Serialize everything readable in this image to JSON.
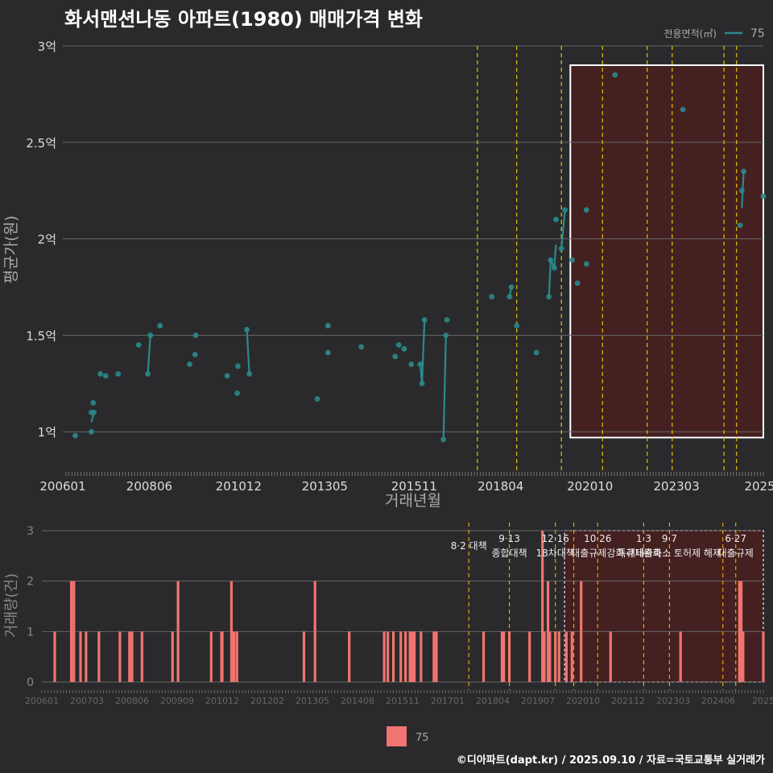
{
  "title": "화서맨션나동 아파트(1980) 매매가격 변화",
  "footer": "©디아파트(dapt.kr) / 2025.09.10 / 자료=국토교통부 실거래가",
  "colors": {
    "background": "#2a2a2c",
    "line": "#2a8a8a",
    "bar": "#f07470",
    "policy_line": "#e6c200",
    "highlight_fill": "#4a1e20",
    "highlight_border": "#ffffff",
    "grid": "#666666"
  },
  "chart_data": [
    {
      "type": "scatter",
      "title": "화서맨션나동 아파트(1980) 매매가격 변화",
      "xlabel": "거래년월",
      "ylabel": "평균가(원)",
      "ylim": [
        0.85,
        3.0
      ],
      "xlim": [
        2006.0,
        2025.6
      ],
      "y_ticks": [
        1,
        1.5,
        2,
        2.5,
        3
      ],
      "y_tick_labels": [
        "1억",
        "1.5억",
        "2억",
        "2.5억",
        "3억"
      ],
      "x_ticks": [
        2006.0,
        2008.42,
        2010.92,
        2013.33,
        2015.83,
        2018.25,
        2020.75,
        2023.17,
        2025.5
      ],
      "x_tick_labels": [
        "200601",
        "200806",
        "201012",
        "201305",
        "201511",
        "201804",
        "202010",
        "202303",
        "2025"
      ],
      "legend_title": "전용면적(㎡)",
      "legend_label": "75",
      "series": [
        {
          "name": "75",
          "points": [
            [
              2006.35,
              0.98
            ],
            [
              2006.8,
              1.0
            ],
            [
              2006.8,
              1.1
            ],
            [
              2006.85,
              1.15
            ],
            [
              2006.87,
              1.1
            ],
            [
              2007.05,
              1.3
            ],
            [
              2007.2,
              1.29
            ],
            [
              2007.55,
              1.3
            ],
            [
              2008.12,
              1.45
            ],
            [
              2008.38,
              1.3
            ],
            [
              2008.45,
              1.5
            ],
            [
              2008.72,
              1.55
            ],
            [
              2009.55,
              1.35
            ],
            [
              2009.7,
              1.4
            ],
            [
              2009.72,
              1.5
            ],
            [
              2010.6,
              1.29
            ],
            [
              2010.88,
              1.2
            ],
            [
              2010.9,
              1.34
            ],
            [
              2011.15,
              1.53
            ],
            [
              2011.22,
              1.3
            ],
            [
              2013.12,
              1.17
            ],
            [
              2013.42,
              1.55
            ],
            [
              2013.42,
              1.41
            ],
            [
              2014.35,
              1.44
            ],
            [
              2015.3,
              1.39
            ],
            [
              2015.4,
              1.45
            ],
            [
              2015.55,
              1.43
            ],
            [
              2015.75,
              1.35
            ],
            [
              2016.0,
              1.35
            ],
            [
              2016.05,
              1.25
            ],
            [
              2016.12,
              1.58
            ],
            [
              2016.65,
              0.96
            ],
            [
              2016.72,
              1.5
            ],
            [
              2016.75,
              1.58
            ],
            [
              2018.0,
              1.7
            ],
            [
              2018.5,
              1.7
            ],
            [
              2018.55,
              1.75
            ],
            [
              2018.7,
              1.55
            ],
            [
              2019.25,
              1.41
            ],
            [
              2019.6,
              1.7
            ],
            [
              2019.65,
              1.89
            ],
            [
              2019.75,
              1.85
            ],
            [
              2019.8,
              2.1
            ],
            [
              2019.95,
              1.95
            ],
            [
              2020.05,
              2.15
            ],
            [
              2020.25,
              1.89
            ],
            [
              2020.4,
              1.77
            ],
            [
              2020.65,
              1.87
            ],
            [
              2020.65,
              2.15
            ],
            [
              2021.45,
              2.85
            ],
            [
              2023.35,
              2.67
            ],
            [
              2024.95,
              2.07
            ],
            [
              2025.0,
              2.25
            ],
            [
              2025.05,
              2.35
            ],
            [
              2025.6,
              2.22
            ]
          ],
          "segments": [
            [
              [
                2006.8,
                1.05
              ],
              [
                2006.87,
                1.1
              ]
            ],
            [
              [
                2008.38,
                1.3
              ],
              [
                2008.45,
                1.5
              ]
            ],
            [
              [
                2011.15,
                1.53
              ],
              [
                2011.22,
                1.3
              ]
            ],
            [
              [
                2016.0,
                1.35
              ],
              [
                2016.05,
                1.25
              ],
              [
                2016.12,
                1.58
              ]
            ],
            [
              [
                2016.65,
                0.96
              ],
              [
                2016.72,
                1.5
              ]
            ],
            [
              [
                2018.5,
                1.7
              ],
              [
                2018.55,
                1.75
              ]
            ],
            [
              [
                2019.6,
                1.7
              ],
              [
                2019.65,
                1.89
              ],
              [
                2019.75,
                1.85
              ],
              [
                2019.8,
                1.97
              ]
            ],
            [
              [
                2019.95,
                1.95
              ],
              [
                2020.05,
                2.15
              ]
            ],
            [
              [
                2025.0,
                2.16
              ],
              [
                2025.05,
                2.35
              ]
            ]
          ]
        }
      ],
      "policy_lines": [
        2017.6,
        2018.7,
        2019.95,
        2021.1,
        2022.35,
        2023.05,
        2024.5,
        2024.85
      ],
      "highlight": [
        2020.2,
        2025.6
      ]
    },
    {
      "type": "bar",
      "xlabel": "",
      "ylabel": "거래량(건)",
      "ylim": [
        0,
        3
      ],
      "y_ticks": [
        0,
        1,
        2,
        3
      ],
      "y_tick_labels": [
        "0",
        "1",
        "2",
        "3"
      ],
      "x_ticks": [
        2006.0,
        2007.5,
        2008.75,
        2010.0,
        2011.25,
        2012.5,
        2013.75,
        2015.0,
        2016.25,
        2017.5,
        2018.75,
        2020.0,
        2021.25,
        2022.5,
        2023.75,
        2025.0
      ],
      "x_tick_labels": [
        "200601",
        "200703",
        "200806",
        "200909",
        "201012",
        "201202",
        "201305",
        "201408",
        "201511",
        "201701",
        "201804",
        "201907",
        "202010",
        "202112",
        "202303",
        "202406",
        "2025"
      ],
      "legend_label": "75",
      "bars": [
        [
          2006.35,
          1
        ],
        [
          2006.8,
          2
        ],
        [
          2006.87,
          2
        ],
        [
          2007.05,
          1
        ],
        [
          2007.2,
          1
        ],
        [
          2007.55,
          1
        ],
        [
          2008.12,
          1
        ],
        [
          2008.38,
          1
        ],
        [
          2008.45,
          1
        ],
        [
          2008.72,
          1
        ],
        [
          2009.55,
          1
        ],
        [
          2009.7,
          2
        ],
        [
          2010.6,
          1
        ],
        [
          2010.88,
          1
        ],
        [
          2010.9,
          1
        ],
        [
          2011.15,
          2
        ],
        [
          2011.22,
          1
        ],
        [
          2011.3,
          1
        ],
        [
          2013.12,
          1
        ],
        [
          2013.42,
          2
        ],
        [
          2014.35,
          1
        ],
        [
          2015.3,
          1
        ],
        [
          2015.4,
          1
        ],
        [
          2015.55,
          1
        ],
        [
          2015.75,
          1
        ],
        [
          2015.88,
          1
        ],
        [
          2016.0,
          1
        ],
        [
          2016.05,
          1
        ],
        [
          2016.12,
          1
        ],
        [
          2016.3,
          1
        ],
        [
          2016.65,
          1
        ],
        [
          2016.72,
          1
        ],
        [
          2018.0,
          1
        ],
        [
          2018.5,
          1
        ],
        [
          2018.55,
          1
        ],
        [
          2018.7,
          1
        ],
        [
          2019.25,
          1
        ],
        [
          2019.6,
          3
        ],
        [
          2019.65,
          1
        ],
        [
          2019.75,
          2
        ],
        [
          2019.8,
          1
        ],
        [
          2019.95,
          1
        ],
        [
          2020.05,
          1
        ],
        [
          2020.25,
          1
        ],
        [
          2020.4,
          1
        ],
        [
          2020.65,
          2
        ],
        [
          2021.45,
          1
        ],
        [
          2023.35,
          1
        ],
        [
          2024.95,
          2
        ],
        [
          2025.0,
          2
        ],
        [
          2025.05,
          1
        ],
        [
          2025.6,
          1
        ]
      ],
      "policy_lines": [
        2017.6,
        2018.7,
        2019.95,
        2020.45,
        2021.1,
        2022.35,
        2023.05,
        2024.5,
        2024.85
      ],
      "highlight": [
        2020.2,
        2025.6
      ],
      "annotations": [
        {
          "x": 2017.6,
          "date": "",
          "text": "8·2 대책"
        },
        {
          "x": 2018.7,
          "date": "9·13",
          "text": "종합대책"
        },
        {
          "x": 2019.95,
          "date": "12·16",
          "text": "18차대책"
        },
        {
          "x": 2021.1,
          "date": "10·26",
          "text": "대출규제강화"
        },
        {
          "x": 2022.35,
          "date": "1·3",
          "text": "규제완화"
        },
        {
          "x": 2023.05,
          "date": "9·7",
          "text": "특례대출축소 토허제 해제"
        },
        {
          "x": 2024.85,
          "date": "6·27",
          "text": "대출규제"
        }
      ]
    }
  ]
}
